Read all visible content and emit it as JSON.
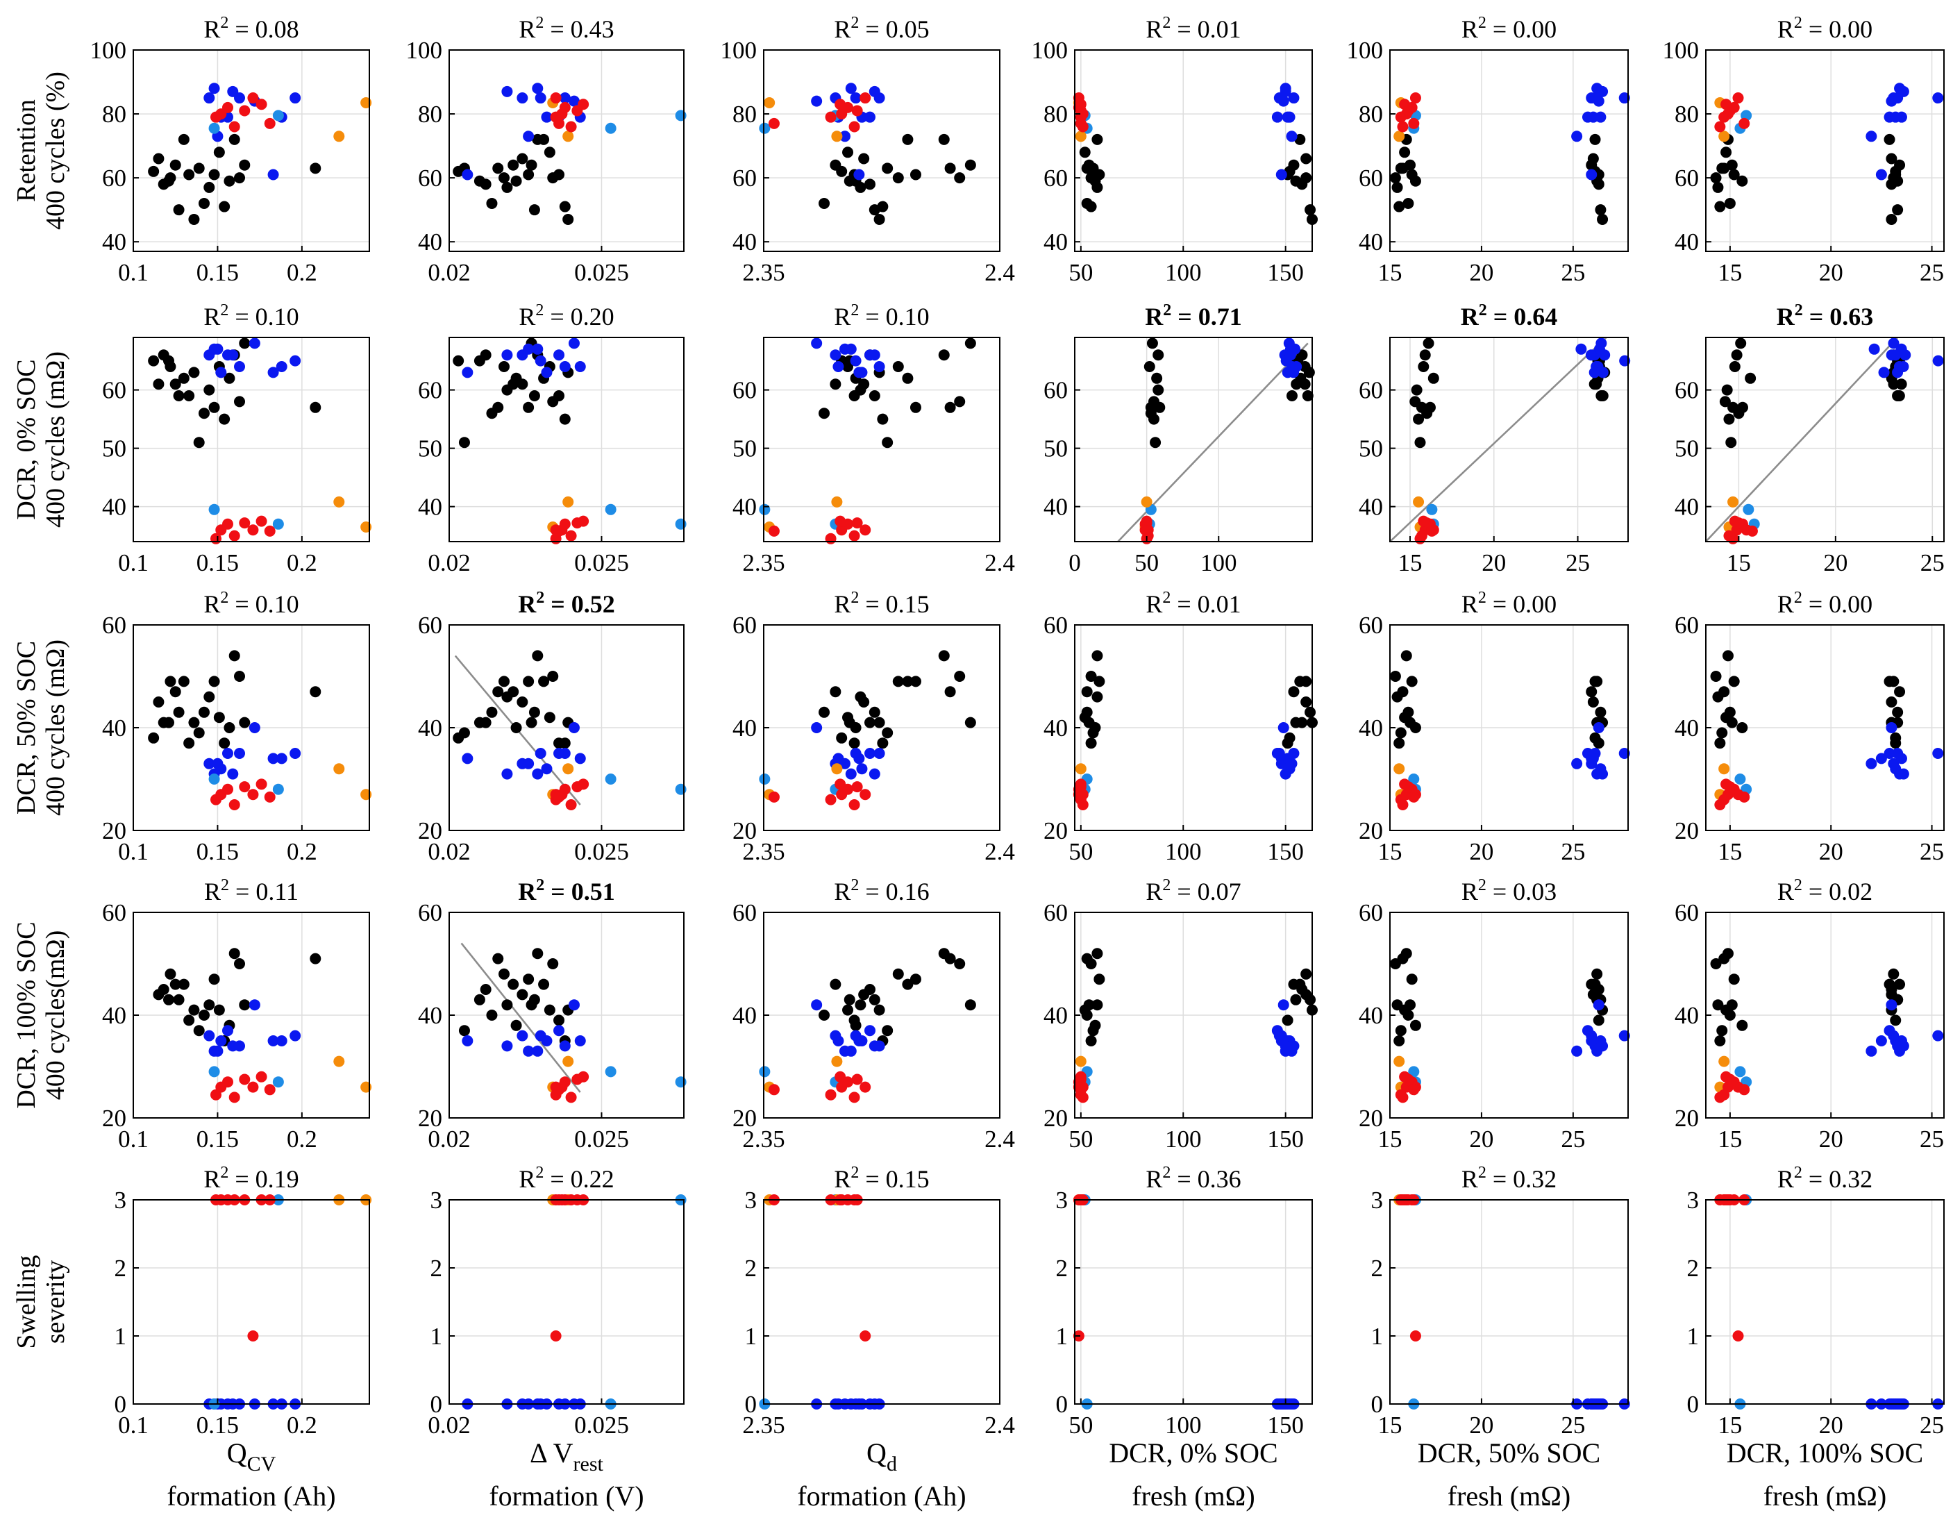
{
  "colors": {
    "black": "#000000",
    "blue": "#0a18f0",
    "lightblue": "#1e8ce6",
    "orange": "#f58c0a",
    "red": "#f00f14"
  },
  "chart_data": {
    "type": "scatter",
    "row_labels": [
      [
        "Retention",
        "400 cycles (%)"
      ],
      [
        "DCR, 0% SOC",
        "400 cycles (mΩ)"
      ],
      [
        "DCR, 50% SOC",
        "400 cycles (mΩ)"
      ],
      [
        "DCR, 100% SOC",
        "400 cycles(mΩ)"
      ],
      [
        "Swelling",
        "severity"
      ]
    ],
    "col_labels": [
      {
        "main": "Q",
        "sub": "CV",
        "line2": "formation (Ah)"
      },
      {
        "main": "Δ V",
        "sub": "rest",
        "line2": "formation (V)"
      },
      {
        "main": "Q",
        "sub": "d",
        "line2": "formation (Ah)"
      },
      {
        "main": "DCR, 0% SOC",
        "sub": "",
        "line2": "fresh (mΩ)"
      },
      {
        "main": "DCR, 50% SOC",
        "sub": "",
        "line2": "fresh (mΩ)"
      },
      {
        "main": "DCR, 100% SOC",
        "sub": "",
        "line2": "fresh (mΩ)"
      }
    ],
    "x_axes": [
      {
        "range": [
          0.1,
          0.24
        ],
        "ticks": [
          0.1,
          0.15,
          0.2
        ],
        "tick_labels": [
          "0.1",
          "0.15",
          "0.2"
        ]
      },
      {
        "range": [
          0.02,
          0.0277
        ],
        "ticks": [
          0.02,
          0.025
        ],
        "tick_labels": [
          "0.02",
          "0.025"
        ]
      },
      {
        "range": [
          2.35,
          2.4
        ],
        "ticks": [
          2.35,
          2.4
        ],
        "tick_labels": [
          "2.35",
          "2.4"
        ]
      },
      {
        "range": [
          47,
          163
        ],
        "ticks": [
          50,
          100,
          150
        ],
        "tick_labels": [
          "50",
          "100",
          "150"
        ]
      },
      {
        "range": [
          15,
          28
        ],
        "ticks": [
          15,
          20,
          25
        ],
        "tick_labels": [
          "15",
          "20",
          "25"
        ]
      },
      {
        "range": [
          13.8,
          25.6
        ],
        "ticks": [
          15,
          20,
          25
        ],
        "tick_labels": [
          "15",
          "20",
          "25"
        ]
      }
    ],
    "x_axes_row1": [
      {
        "range": [
          0.1,
          0.24
        ],
        "ticks": [
          0.1,
          0.15,
          0.2
        ],
        "tick_labels": [
          "0.1",
          "0.15",
          "0.2"
        ]
      },
      {
        "range": [
          0.02,
          0.0277
        ],
        "ticks": [
          0.02,
          0.025
        ],
        "tick_labels": [
          "0.02",
          "0.025"
        ]
      },
      {
        "range": [
          2.35,
          2.4
        ],
        "ticks": [
          2.35,
          2.4
        ],
        "tick_labels": [
          "2.35",
          "2.4"
        ]
      },
      {
        "range": [
          0,
          165
        ],
        "ticks": [
          0,
          50,
          100
        ],
        "tick_labels": [
          "0",
          "50",
          "100"
        ],
        "tick_labels_full": [
          "0",
          "100"
        ],
        "ticks_full": [
          0,
          100
        ]
      },
      {
        "range": [
          13.8,
          28
        ],
        "ticks": [
          15,
          20,
          25
        ],
        "tick_labels": [
          "15",
          "20",
          "25"
        ]
      },
      {
        "range": [
          13.3,
          25.6
        ],
        "ticks": [
          15,
          20,
          25
        ],
        "tick_labels": [
          "15",
          "20",
          "25"
        ]
      }
    ],
    "y_axes": [
      {
        "range": [
          37,
          100
        ],
        "ticks": [
          40,
          60,
          80,
          100
        ],
        "tick_labels": [
          "40",
          "60",
          "80",
          "100"
        ]
      },
      {
        "range": [
          34,
          69
        ],
        "ticks": [
          40,
          50,
          60
        ],
        "tick_labels": [
          "40",
          "50",
          "60"
        ]
      },
      {
        "range": [
          20,
          60
        ],
        "ticks": [
          20,
          40,
          60
        ],
        "tick_labels": [
          "20",
          "40",
          "60"
        ]
      },
      {
        "range": [
          20,
          60
        ],
        "ticks": [
          20,
          40,
          60
        ],
        "tick_labels": [
          "20",
          "40",
          "60"
        ]
      },
      {
        "range": [
          0,
          3
        ],
        "ticks": [
          0,
          1,
          2,
          3
        ],
        "tick_labels": [
          "0",
          "1",
          "2",
          "3"
        ]
      }
    ],
    "r2": [
      [
        "R2 = 0.08",
        "R2 = 0.43",
        "R2 = 0.05",
        "R2 = 0.01",
        "R2 = 0.00",
        "R2 = 0.00"
      ],
      [
        "R2 = 0.10",
        "R2 = 0.20",
        "R2 = 0.10",
        "R2 = 0.71",
        "R2 = 0.64",
        "R2 = 0.63"
      ],
      [
        "R2 = 0.10",
        "R2 = 0.52",
        "R2 = 0.15",
        "R2 = 0.01",
        "R2 = 0.00",
        "R2 = 0.00"
      ],
      [
        "R2 = 0.11",
        "R2 = 0.51",
        "R2 = 0.16",
        "R2 = 0.07",
        "R2 = 0.03",
        "R2 = 0.02"
      ],
      [
        "R2 = 0.19",
        "R2 = 0.22",
        "R2 = 0.15",
        "R2 = 0.36",
        "R2 = 0.32",
        "R2 = 0.32"
      ]
    ],
    "r2_bold": [
      [
        false,
        false,
        false,
        false,
        false,
        false
      ],
      [
        false,
        false,
        false,
        true,
        true,
        true
      ],
      [
        false,
        true,
        false,
        false,
        false,
        false
      ],
      [
        false,
        true,
        false,
        false,
        false,
        false
      ],
      [
        false,
        false,
        false,
        false,
        false,
        false
      ]
    ],
    "fit_lines": [
      {
        "row": 1,
        "col": 3,
        "p1": [
          30,
          34
        ],
        "p2": [
          162,
          68
        ]
      },
      {
        "row": 1,
        "col": 4,
        "p1": [
          13.8,
          34
        ],
        "p2": [
          26.7,
          69
        ]
      },
      {
        "row": 1,
        "col": 5,
        "p1": [
          13.3,
          34
        ],
        "p2": [
          23.2,
          69
        ]
      },
      {
        "row": 2,
        "col": 1,
        "p1": [
          0.0202,
          54
        ],
        "p2": [
          0.0243,
          25
        ]
      },
      {
        "row": 3,
        "col": 1,
        "p1": [
          0.0204,
          54
        ],
        "p2": [
          0.0243,
          25
        ]
      }
    ],
    "groups": {
      "black": [
        [
          0.112,
          0.0203,
          2.3665,
          152,
          26.2,
          23.2
        ],
        [
          0.118,
          0.0212,
          2.3725,
          158,
          26.4,
          23.0
        ],
        [
          0.122,
          0.0218,
          2.3785,
          160,
          26.3,
          23.1
        ],
        [
          0.125,
          0.0221,
          2.3652,
          154,
          26.0,
          23.4
        ],
        [
          0.127,
          0.0228,
          2.3735,
          162,
          26.5,
          23.3
        ],
        [
          0.13,
          0.0231,
          2.3805,
          157,
          26.2,
          22.9
        ],
        [
          0.133,
          0.0236,
          2.3692,
          151,
          26.4,
          23.2
        ],
        [
          0.136,
          0.0239,
          2.3745,
          163,
          26.6,
          23.0
        ],
        [
          0.139,
          0.0205,
          2.3762,
          56,
          15.6,
          14.6
        ],
        [
          0.142,
          0.0214,
          2.3628,
          53,
          16.0,
          15.0
        ],
        [
          0.145,
          0.0219,
          2.3705,
          58,
          15.4,
          14.4
        ],
        [
          0.148,
          0.0226,
          2.3822,
          59,
          16.2,
          15.2
        ],
        [
          0.151,
          0.0233,
          2.3678,
          52,
          15.8,
          14.8
        ],
        [
          0.154,
          0.0238,
          2.3752,
          55,
          15.5,
          14.5
        ],
        [
          0.157,
          0.0222,
          2.3695,
          57,
          16.4,
          15.6
        ],
        [
          0.16,
          0.0229,
          2.3882,
          58,
          15.9,
          14.9
        ],
        [
          0.163,
          0.0234,
          2.3915,
          55,
          15.3,
          14.3
        ],
        [
          0.166,
          0.0227,
          2.3938,
          54,
          16.1,
          15.1
        ],
        [
          0.208,
          0.0216,
          2.3895,
          53,
          15.7,
          14.7
        ],
        [
          0.115,
          0.0224,
          2.3712,
          160,
          26.1,
          23.0
        ],
        [
          0.121,
          0.021,
          2.3682,
          155,
          26.3,
          23.3
        ]
      ],
      "blue": [
        [
          0.145,
          0.0224,
          2.3652,
          148,
          26.0,
          23.1
        ],
        [
          0.148,
          0.0229,
          2.3685,
          150,
          26.3,
          23.4
        ],
        [
          0.152,
          0.0232,
          2.3708,
          152,
          26.5,
          23.2
        ],
        [
          0.156,
          0.0236,
          2.3725,
          146,
          25.8,
          22.9
        ],
        [
          0.163,
          0.0238,
          2.3745,
          154,
          26.2,
          23.3
        ],
        [
          0.172,
          0.0241,
          2.3612,
          149,
          26.4,
          23.0
        ],
        [
          0.188,
          0.0243,
          2.3658,
          151,
          26.1,
          23.5
        ],
        [
          0.196,
          0.023,
          2.3695,
          147,
          27.8,
          25.3
        ],
        [
          0.15,
          0.0226,
          2.3672,
          153,
          25.2,
          22.0
        ],
        [
          0.159,
          0.0219,
          2.3735,
          150,
          26.6,
          23.6
        ],
        [
          0.183,
          0.0206,
          2.3702,
          148,
          26.0,
          22.5
        ]
      ],
      "lightblue": [
        [
          0.148,
          0.0253,
          2.3502,
          53,
          16.3,
          15.5
        ],
        [
          0.186,
          0.0276,
          2.3652,
          52,
          16.4,
          15.8
        ]
      ],
      "orange": [
        [
          0.238,
          0.0234,
          2.3512,
          49,
          15.6,
          14.5
        ],
        [
          0.222,
          0.0239,
          2.3655,
          50,
          15.5,
          14.7
        ]
      ],
      "red": [
        [
          0.149,
          0.0235,
          2.3642,
          50,
          15.6,
          14.7
        ],
        [
          0.152,
          0.0237,
          2.3665,
          51,
          15.9,
          14.9
        ],
        [
          0.156,
          0.0238,
          2.3678,
          49,
          16.2,
          15.2
        ],
        [
          0.16,
          0.024,
          2.3692,
          51,
          15.7,
          14.5
        ],
        [
          0.166,
          0.0242,
          2.3698,
          50,
          16.0,
          15.0
        ],
        [
          0.171,
          0.0235,
          2.3715,
          49,
          16.4,
          15.4
        ],
        [
          0.176,
          0.0244,
          2.3662,
          50,
          15.8,
          14.8
        ],
        [
          0.181,
          0.0236,
          2.3522,
          50,
          16.3,
          15.7
        ]
      ]
    },
    "group_y": {
      "black": [
        [
          62,
          65,
          38,
          61,
          41,
          43,
          1
        ],
        [
          58,
          66,
          41,
          45,
          44,
          45,
          0
        ],
        [
          60,
          64,
          49,
          48,
          47,
          49,
          0
        ],
        [
          64,
          61,
          47,
          46,
          50,
          50,
          0
        ],
        [
          50,
          59,
          43,
          43,
          45,
          44,
          0
        ],
        [
          72,
          62,
          49,
          46,
          52,
          51,
          0
        ],
        [
          61,
          59,
          37,
          39,
          42,
          41,
          0
        ],
        [
          47,
          63,
          41,
          41,
          46,
          44,
          0
        ],
        [
          63,
          51,
          39,
          37,
          54,
          54,
          1
        ],
        [
          52,
          56,
          43,
          40,
          49,
          50,
          0
        ],
        [
          57,
          60,
          46,
          42,
          50,
          48,
          0
        ],
        [
          61,
          57,
          49,
          47,
          48,
          46,
          0
        ],
        [
          68,
          64,
          42,
          41,
          41,
          40,
          0
        ],
        [
          51,
          55,
          37,
          35,
          44,
          43,
          0
        ],
        [
          59,
          62,
          40,
          38,
          42,
          41,
          0
        ],
        [
          72,
          66,
          54,
          52,
          41,
          41,
          0
        ],
        [
          60,
          58,
          50,
          50,
          46,
          45,
          0
        ],
        [
          64,
          68,
          41,
          42,
          41,
          40,
          0
        ],
        [
          63,
          57,
          47,
          51,
          37,
          37,
          0
        ],
        [
          66,
          61,
          45,
          44,
          38,
          37,
          0
        ],
        [
          59,
          65,
          41,
          43,
          37,
          38,
          0
        ]
      ],
      "blue": [
        [
          85,
          66,
          33,
          36,
          0
        ],
        [
          88,
          67,
          31,
          33,
          0
        ],
        [
          79,
          63,
          32,
          35,
          0
        ],
        [
          79,
          66,
          35,
          37,
          0
        ],
        [
          85,
          64,
          35,
          34,
          0
        ],
        [
          84,
          68,
          40,
          42,
          0
        ],
        [
          79,
          64,
          34,
          35,
          0
        ],
        [
          85,
          65,
          35,
          36,
          0
        ],
        [
          73,
          67,
          33,
          33,
          0
        ],
        [
          87,
          66,
          31,
          34,
          0
        ],
        [
          61,
          63,
          34,
          35,
          0
        ]
      ],
      "lightblue": [
        [
          75.5,
          39.5,
          30,
          29,
          0
        ],
        [
          79.5,
          37,
          28,
          27,
          3
        ]
      ],
      "orange": [
        [
          83.5,
          36.5,
          27,
          26,
          3
        ],
        [
          73,
          40.8,
          32,
          31,
          3
        ]
      ],
      "red": [
        [
          79,
          34.5,
          26,
          24.5,
          3
        ],
        [
          80,
          36,
          27,
          26,
          3
        ],
        [
          82,
          37,
          28,
          27,
          3
        ],
        [
          76,
          35,
          25,
          24,
          3
        ],
        [
          81,
          37.2,
          28.5,
          27.5,
          3
        ],
        [
          85,
          36,
          27,
          26,
          1
        ],
        [
          83,
          37.5,
          29,
          28,
          3
        ],
        [
          77,
          35.8,
          26.5,
          25.5,
          3
        ]
      ]
    }
  }
}
